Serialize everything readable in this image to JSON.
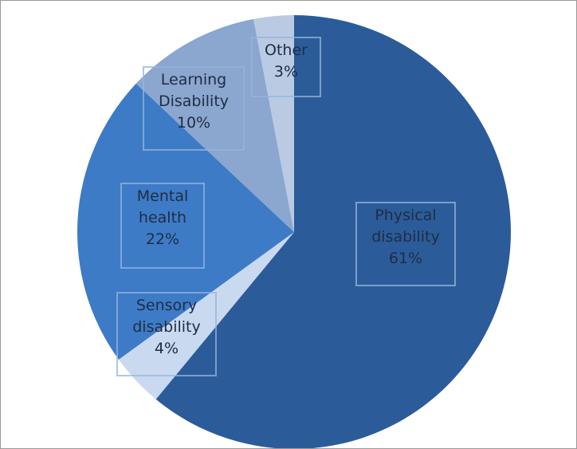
{
  "chart_data": {
    "type": "pie",
    "categories": [
      "Physical disability",
      "Sensory disability",
      "Mental health",
      "Learning Disability",
      "Other"
    ],
    "values": [
      61,
      4,
      22,
      10,
      3
    ],
    "value_labels": [
      "61%",
      "4%",
      "22%",
      "10%",
      "3%"
    ],
    "colors": [
      "#2b5c99",
      "#c9d9ef",
      "#3d7bc6",
      "#8ba6cf",
      "#b9cae2"
    ]
  }
}
